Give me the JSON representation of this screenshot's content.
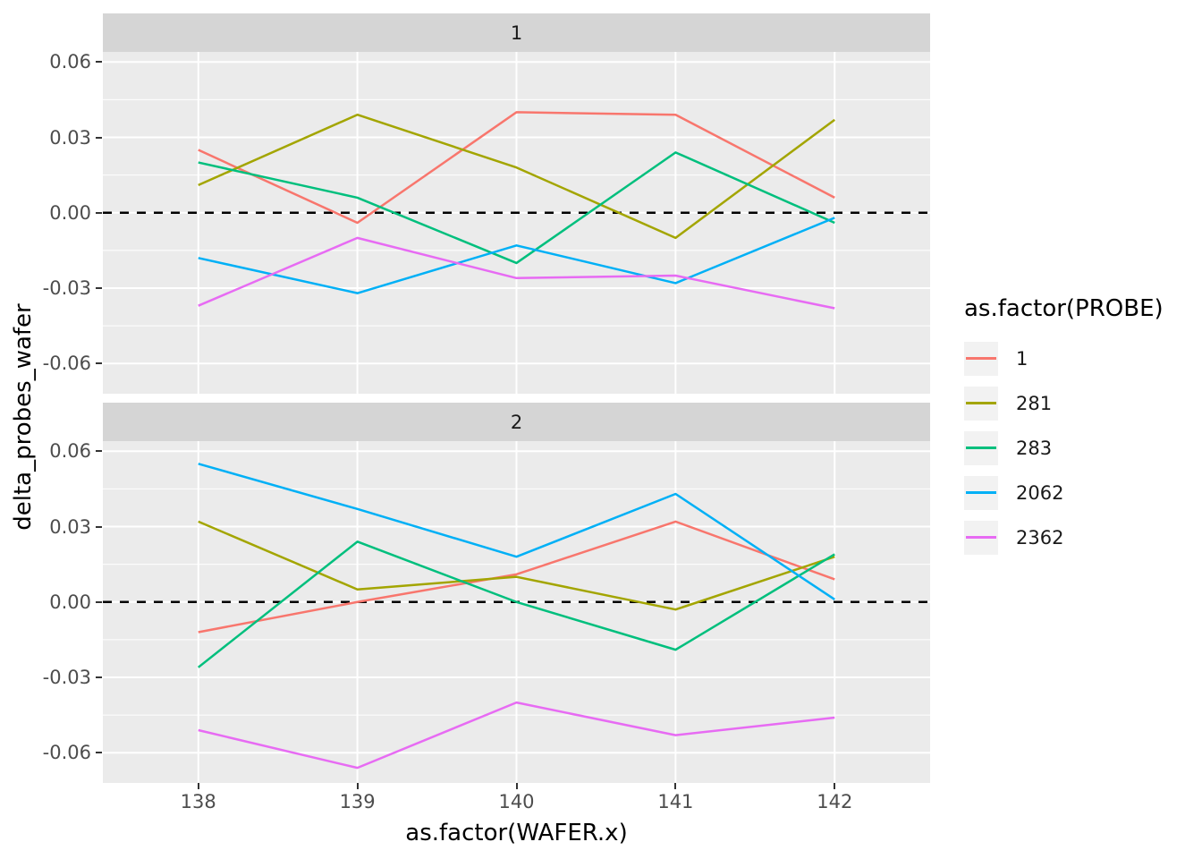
{
  "figure": {
    "x_axis_title": "as.factor(WAFER.x)",
    "y_axis_title": "delta_probes_wafer"
  },
  "legend": {
    "title": "as.factor(PROBE)",
    "entries": [
      {
        "label": "1",
        "color": "#F8766D"
      },
      {
        "label": "281",
        "color": "#A3A500"
      },
      {
        "label": "283",
        "color": "#00BF7D"
      },
      {
        "label": "2062",
        "color": "#00B0F6"
      },
      {
        "label": "2362",
        "color": "#E76BF3"
      }
    ]
  },
  "chart_data": {
    "type": "line",
    "title": "",
    "xlabel": "as.factor(WAFER.x)",
    "ylabel": "delta_probes_wafer",
    "legend_title": "as.factor(PROBE)",
    "legend_position": "right",
    "grid": true,
    "x_categories": [
      "138",
      "139",
      "140",
      "141",
      "142"
    ],
    "y_ticks": [
      0.06,
      0.03,
      0,
      -0.03,
      -0.06
    ],
    "y_tick_labels": [
      "0.06",
      "0.03",
      "0.00",
      "-0.03",
      "-0.06"
    ],
    "y_minor_ticks": [
      0.045,
      0.015,
      -0.015,
      -0.045
    ],
    "ylim": [
      -0.072,
      0.064
    ],
    "reference_line_y": 0,
    "facets": [
      {
        "label": "1",
        "series": [
          {
            "name": "1",
            "values": [
              0.025,
              -0.004,
              0.04,
              0.039,
              0.006
            ]
          },
          {
            "name": "281",
            "values": [
              0.011,
              0.039,
              0.018,
              -0.01,
              0.037
            ]
          },
          {
            "name": "283",
            "values": [
              0.02,
              0.006,
              -0.02,
              0.024,
              -0.004
            ]
          },
          {
            "name": "2062",
            "values": [
              -0.018,
              -0.032,
              -0.013,
              -0.028,
              -0.002
            ]
          },
          {
            "name": "2362",
            "values": [
              -0.037,
              -0.01,
              -0.026,
              -0.025,
              -0.038
            ]
          }
        ]
      },
      {
        "label": "2",
        "series": [
          {
            "name": "1",
            "values": [
              -0.012,
              0.0,
              0.011,
              0.032,
              0.009
            ]
          },
          {
            "name": "281",
            "values": [
              0.032,
              0.005,
              0.01,
              -0.003,
              0.018
            ]
          },
          {
            "name": "283",
            "values": [
              -0.026,
              0.024,
              0.0,
              -0.019,
              0.019
            ]
          },
          {
            "name": "2062",
            "values": [
              0.055,
              0.037,
              0.018,
              0.043,
              0.001
            ]
          },
          {
            "name": "2362",
            "values": [
              -0.051,
              -0.066,
              -0.04,
              -0.053,
              -0.046
            ]
          }
        ]
      }
    ],
    "colors": {
      "panel_bg": "#EBEBEB",
      "strip_bg": "#D5D5D5",
      "grid": "#FFFFFF",
      "tick_text": "#4D4D4D",
      "reference_line": "#000000"
    }
  }
}
